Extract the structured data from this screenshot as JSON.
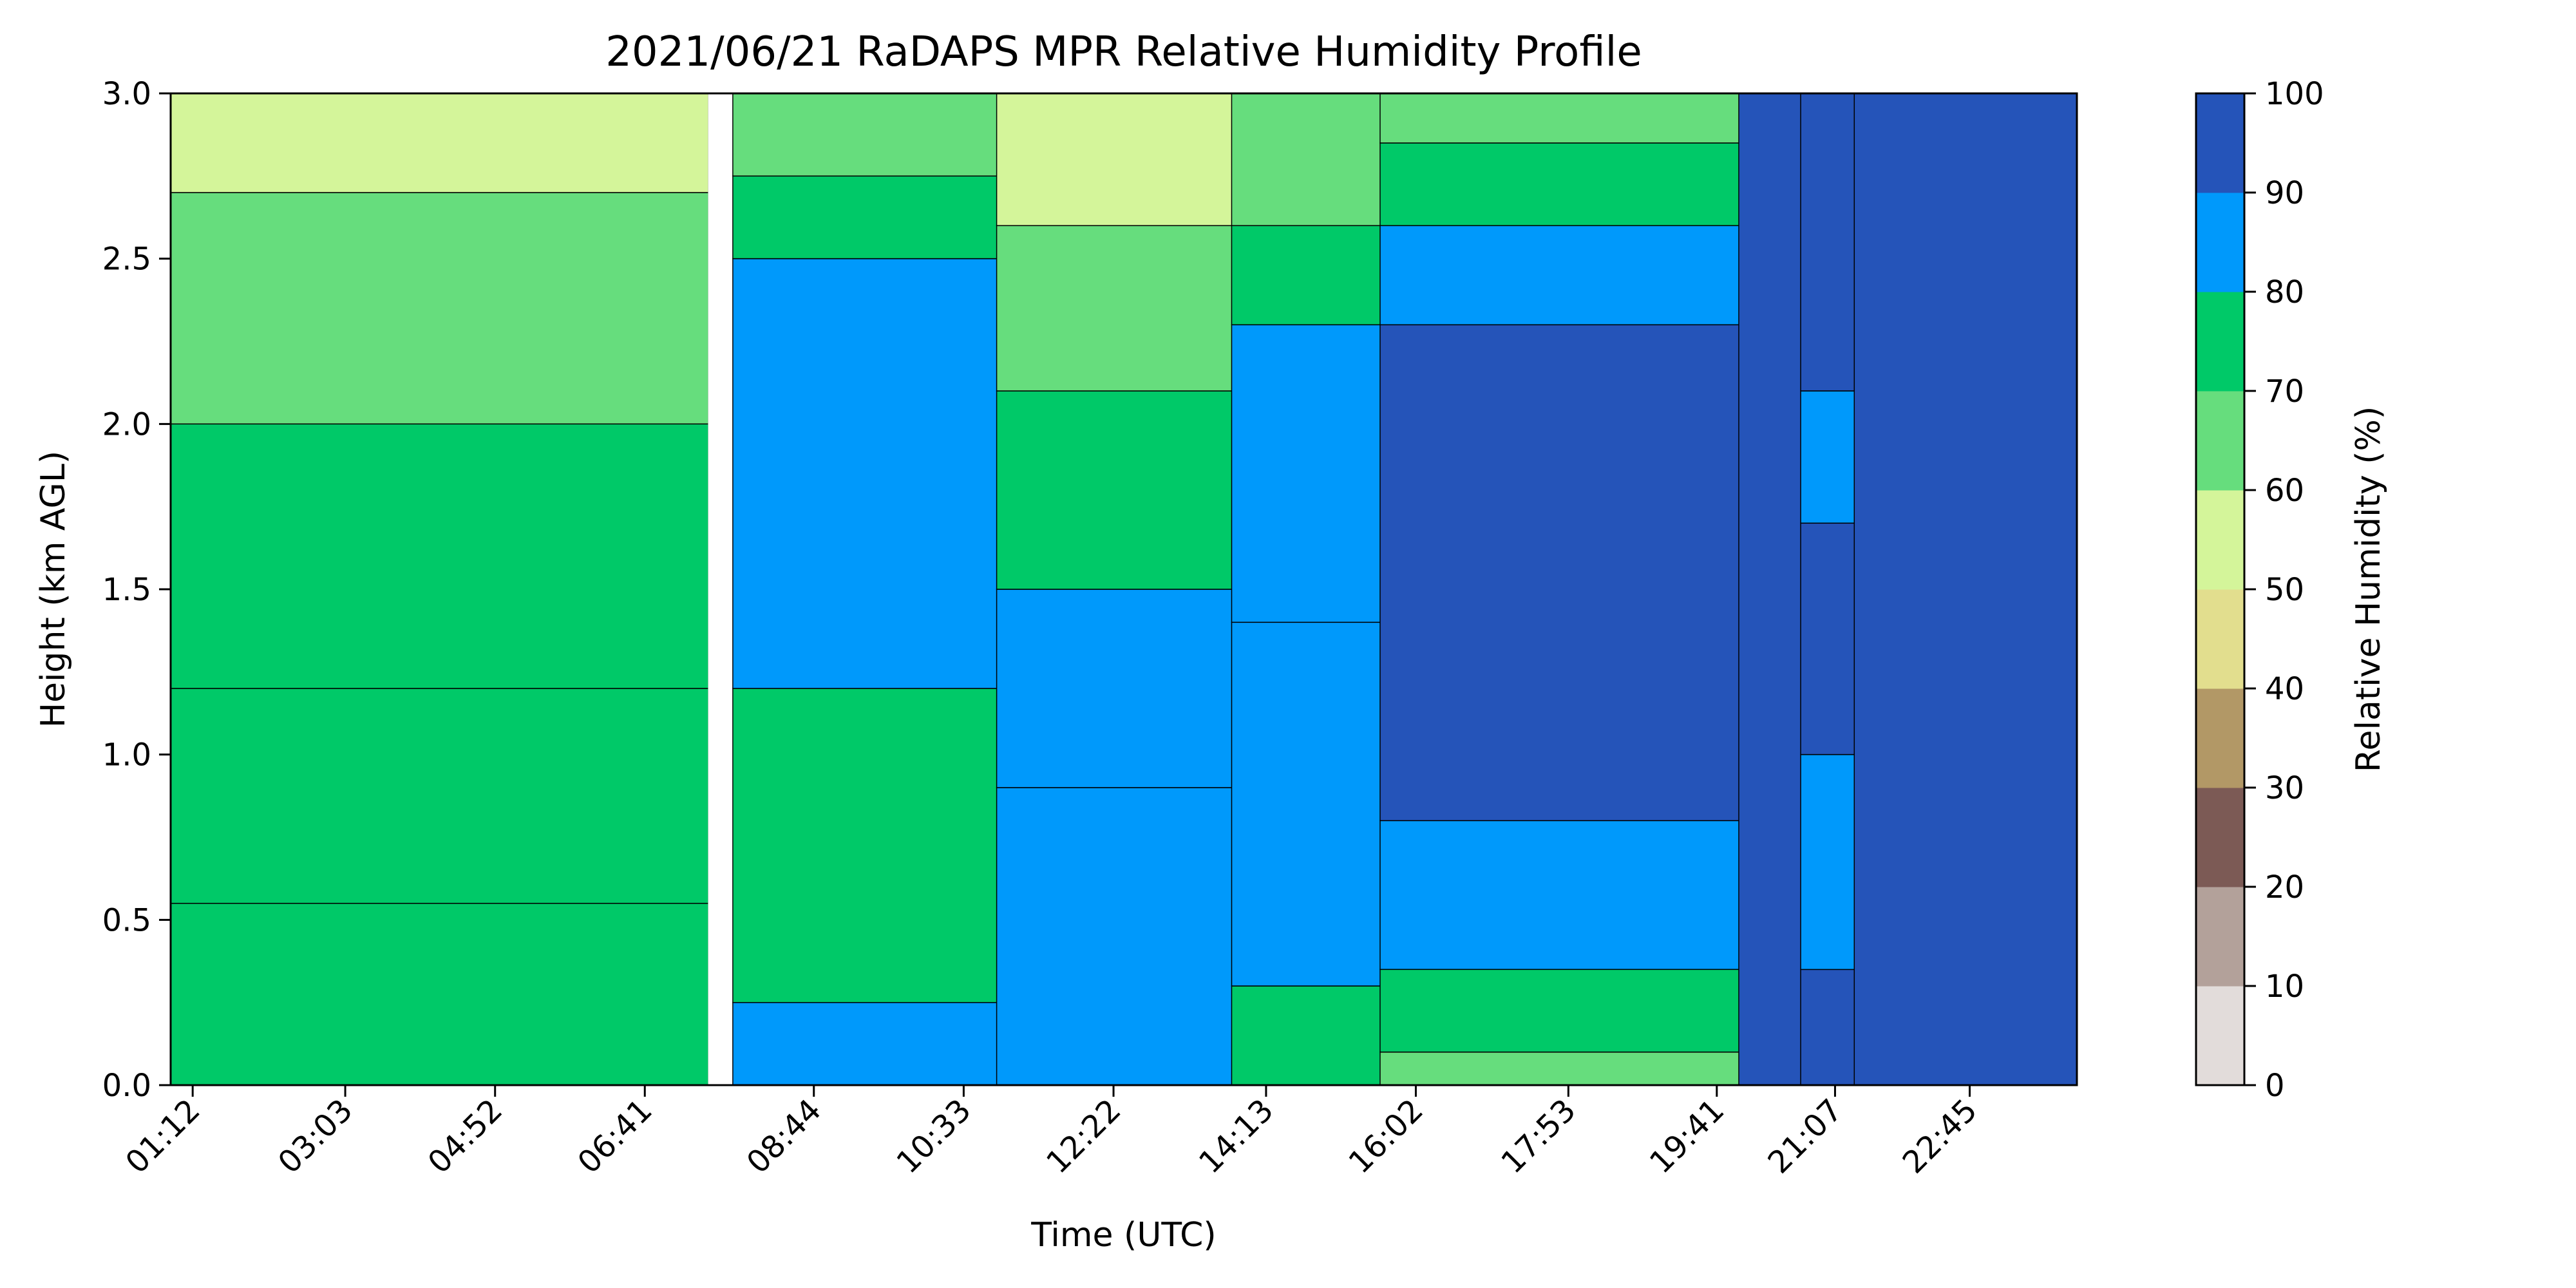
{
  "chart_data": {
    "type": "heatmap",
    "subtype": "filled-contour",
    "title": "2021/06/21 RaDAPS MPR Relative Humidity Profile",
    "xlabel": "Time (UTC)",
    "ylabel": "Height (km AGL)",
    "x_ticks": [
      "01:12",
      "03:03",
      "04:52",
      "06:41",
      "08:44",
      "10:33",
      "12:22",
      "14:13",
      "16:02",
      "17:53",
      "19:41",
      "21:07",
      "22:45"
    ],
    "x_tick_hours": [
      1.2,
      3.05,
      4.867,
      6.683,
      8.733,
      10.55,
      12.367,
      14.217,
      16.033,
      17.883,
      19.683,
      21.117,
      22.75
    ],
    "xlim_hours": [
      0.933,
      24.05
    ],
    "y_ticks": [
      "0.0",
      "0.5",
      "1.0",
      "1.5",
      "2.0",
      "2.5",
      "3.0"
    ],
    "ylim": [
      0,
      3
    ],
    "colorbar": {
      "label": "Relative Humidity (%)",
      "levels": [
        0,
        10,
        20,
        30,
        40,
        50,
        60,
        70,
        80,
        90,
        100
      ],
      "tick_labels": [
        "0",
        "10",
        "20",
        "30",
        "40",
        "50",
        "60",
        "70",
        "80",
        "90",
        "100"
      ],
      "colors": [
        "#e2dcda",
        "#b3a19a",
        "#7c5a55",
        "#b29866",
        "#e2de8e",
        "#d4f59a",
        "#66dd7d",
        "#00c968",
        "#0099fb",
        "#2554b9"
      ],
      "placement": "right"
    },
    "regions": [
      {
        "t0": 0.933,
        "t1": 7.45,
        "bands": [
          [
            0,
            0.55,
            70
          ],
          [
            0.55,
            1.2,
            70
          ],
          [
            1.2,
            2.0,
            70
          ],
          [
            2.0,
            2.7,
            60
          ],
          [
            2.7,
            3.0,
            50
          ]
        ]
      },
      {
        "t0": 7.45,
        "t1": 7.75,
        "bands": [
          [
            0,
            3.0,
            null
          ]
        ]
      },
      {
        "t0": 7.75,
        "t1": 10.95,
        "bands": [
          [
            0,
            0.25,
            80
          ],
          [
            0.25,
            1.2,
            70
          ],
          [
            1.2,
            2.5,
            80
          ],
          [
            2.5,
            2.75,
            70
          ],
          [
            2.75,
            3.0,
            60
          ]
        ]
      },
      {
        "t0": 10.95,
        "t1": 13.8,
        "bands": [
          [
            0,
            0.9,
            80
          ],
          [
            0.9,
            1.5,
            80
          ],
          [
            1.5,
            2.1,
            70
          ],
          [
            2.1,
            2.6,
            60
          ],
          [
            2.6,
            3.0,
            50
          ]
        ]
      },
      {
        "t0": 13.8,
        "t1": 15.6,
        "bands": [
          [
            0,
            0.3,
            70
          ],
          [
            0.3,
            1.4,
            80
          ],
          [
            1.4,
            2.3,
            80
          ],
          [
            2.3,
            2.6,
            70
          ],
          [
            2.6,
            3.0,
            60
          ]
        ]
      },
      {
        "t0": 15.6,
        "t1": 19.95,
        "bands": [
          [
            0,
            0.1,
            60
          ],
          [
            0.1,
            0.35,
            70
          ],
          [
            0.35,
            0.8,
            80
          ],
          [
            0.8,
            2.3,
            90
          ],
          [
            2.3,
            2.6,
            80
          ],
          [
            2.6,
            2.85,
            70
          ],
          [
            2.85,
            3.0,
            60
          ]
        ]
      },
      {
        "t0": 19.95,
        "t1": 20.7,
        "bands": [
          [
            0,
            3.0,
            90
          ]
        ]
      },
      {
        "t0": 20.7,
        "t1": 21.35,
        "bands": [
          [
            0,
            0.35,
            90
          ],
          [
            0.35,
            1.0,
            80
          ],
          [
            1.0,
            1.7,
            90
          ],
          [
            1.7,
            2.1,
            80
          ],
          [
            2.1,
            3.0,
            90
          ]
        ]
      },
      {
        "t0": 21.35,
        "t1": 24.05,
        "bands": [
          [
            0,
            3.0,
            90
          ]
        ]
      }
    ]
  }
}
